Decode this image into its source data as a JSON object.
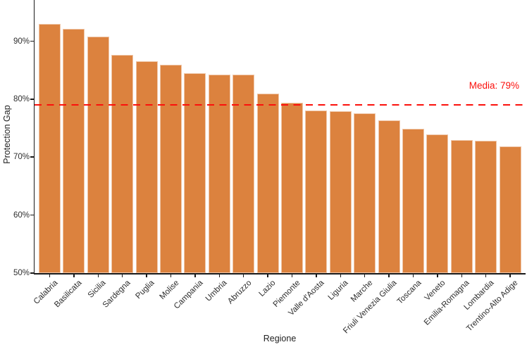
{
  "chart_data": {
    "type": "bar",
    "title": "",
    "xlabel": "Regione",
    "ylabel": "Protection Gap",
    "categories": [
      "Calabria",
      "Basilicata",
      "Sicilia",
      "Sardegna",
      "Puglia",
      "Molise",
      "Campania",
      "Umbria",
      "Abruzzo",
      "Lazio",
      "Piemonte",
      "Valle d'Aosta",
      "Liguria",
      "Marche",
      "Friuli Venezia Giulia",
      "Toscana",
      "Veneto",
      "Emilia-Romagna",
      "Lombardia",
      "Trentino-Alto Adige"
    ],
    "values": [
      93.0,
      92.1,
      90.8,
      87.6,
      86.5,
      86.0,
      84.5,
      84.2,
      84.2,
      81.0,
      79.4,
      78.1,
      77.9,
      77.5,
      76.4,
      74.9,
      73.9,
      72.9,
      72.8,
      71.9
    ],
    "unit": "%",
    "ylim": [
      50,
      97
    ],
    "ytick_values": [
      50,
      60,
      70,
      80,
      90
    ],
    "ytick_labels": [
      "50%",
      "60%",
      "70%",
      "80%",
      "90%"
    ],
    "grid": false,
    "legend": false,
    "sort_order": "descending",
    "bar_color": "#DC823E",
    "reference_line": {
      "value": 79,
      "label": "Media: 79%",
      "color": "#FB100C",
      "style": "dashed"
    }
  }
}
